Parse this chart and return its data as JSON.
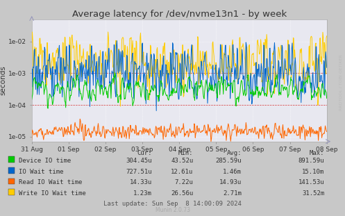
{
  "title": "Average latency for /dev/nvme13n1 - by week",
  "ylabel": "seconds",
  "background_color": "#c8c8c8",
  "plot_bg_color": "#e8e8f0",
  "grid_color": "#ffffff",
  "x_labels": [
    "31 Aug",
    "01 Sep",
    "02 Sep",
    "03 Sep",
    "04 Sep",
    "05 Sep",
    "06 Sep",
    "07 Sep",
    "08 Sep"
  ],
  "ytick_labels": [
    "1e-05",
    "1e-04",
    "1e-03",
    "1e-02"
  ],
  "ytick_vals": [
    1e-05,
    0.0001,
    0.001,
    0.01
  ],
  "series_colors": {
    "device": "#00cc00",
    "io_wait": "#0066cc",
    "read_wait": "#ff6600",
    "write_wait": "#ffcc00"
  },
  "legend": [
    {
      "label": "Device IO time",
      "color": "#00cc00"
    },
    {
      "label": "IO Wait time",
      "color": "#0066cc"
    },
    {
      "label": "Read IO Wait time",
      "color": "#ff6600"
    },
    {
      "label": "Write IO Wait time",
      "color": "#ffcc00"
    }
  ],
  "table_headers": [
    "Cur:",
    "Min:",
    "Avg:",
    "Max:"
  ],
  "table_rows": [
    [
      "Device IO time",
      "304.45u",
      "43.52u",
      "285.59u",
      "891.59u"
    ],
    [
      "IO Wait time",
      "727.51u",
      "12.61u",
      "1.46m",
      "15.10m"
    ],
    [
      "Read IO Wait time",
      "14.33u",
      "7.22u",
      "14.93u",
      "141.53u"
    ],
    [
      "Write IO Wait time",
      "1.23m",
      "26.56u",
      "2.71m",
      "31.52m"
    ]
  ],
  "footer": "Last update: Sun Sep  8 14:00:09 2024",
  "munin_version": "Munin 2.0.73",
  "watermark": "RRDTOOL / TOBI OETIKER",
  "ref_lines": [
    0.0001,
    0.001
  ],
  "ref_line_color": "#cc0000",
  "ylim": [
    7e-06,
    0.05
  ]
}
